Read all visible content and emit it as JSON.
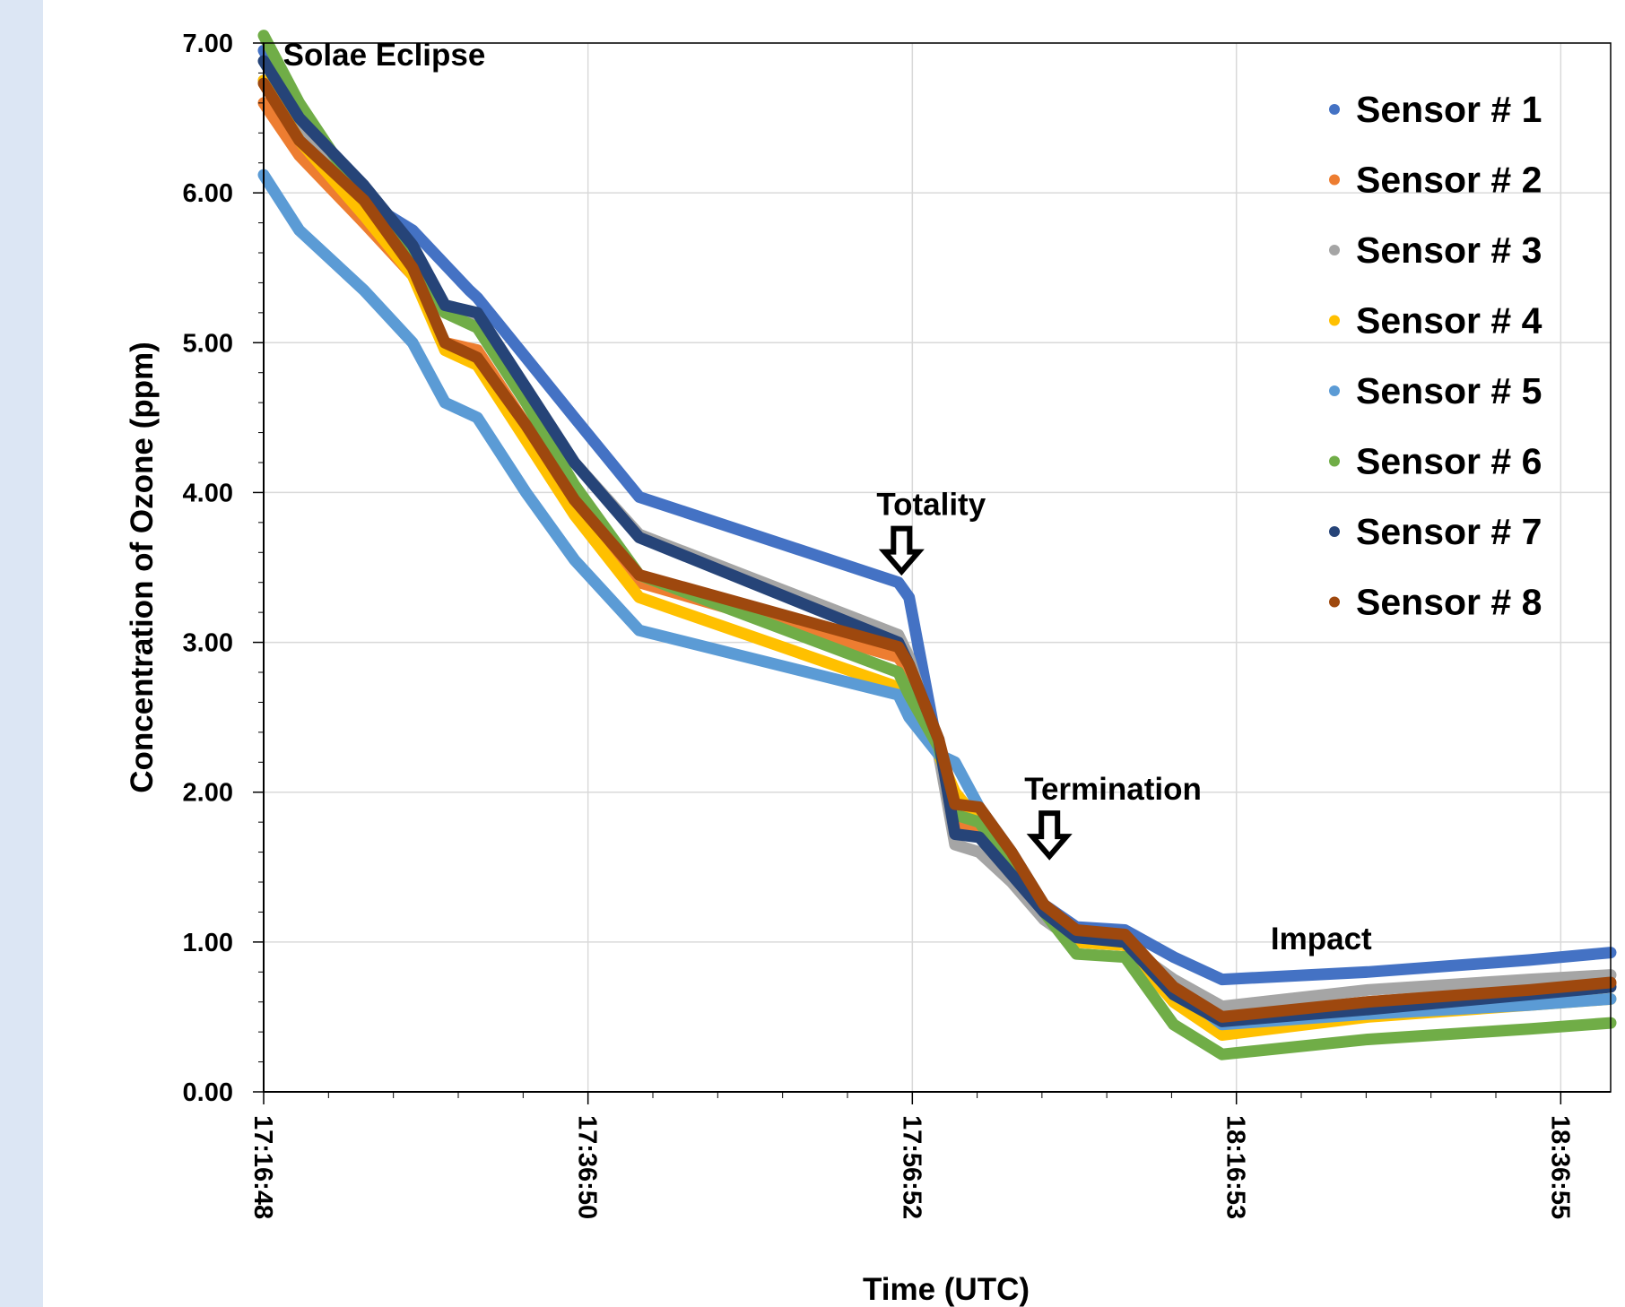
{
  "chart_data": {
    "type": "line",
    "title": "",
    "xlabel": "Time (UTC)",
    "ylabel": "Concentration of Ozone (ppm)",
    "ylim": [
      0,
      7
    ],
    "yticks": [
      "0.00",
      "1.00",
      "2.00",
      "3.00",
      "4.00",
      "5.00",
      "6.00",
      "7.00"
    ],
    "xlim": [
      "17:16:48",
      "18:40:00"
    ],
    "xticks": [
      "17:16:48",
      "17:36:50",
      "17:56:52",
      "18:16:53",
      "18:36:55"
    ],
    "grid": true,
    "legend_position": "top-right",
    "series": [
      {
        "name": "Sensor # 1",
        "color": "#4472c4",
        "x": [
          "17:16:48",
          "17:19:00",
          "17:23:00",
          "17:26:00",
          "17:29:30",
          "17:30:00",
          "17:33:00",
          "17:36:00",
          "17:40:00",
          "17:56:00",
          "17:56:40",
          "17:58:30",
          "17:59:30",
          "18:01:00",
          "18:03:00",
          "18:05:00",
          "18:07:00",
          "18:10:00",
          "18:13:00",
          "18:16:00",
          "18:25:00",
          "18:35:00",
          "18:40:00"
        ],
        "y": [
          6.95,
          6.55,
          5.95,
          5.75,
          5.35,
          5.3,
          4.9,
          4.5,
          3.97,
          3.4,
          3.3,
          2.25,
          1.75,
          1.7,
          1.5,
          1.25,
          1.1,
          1.08,
          0.9,
          0.75,
          0.8,
          0.88,
          0.93
        ]
      },
      {
        "name": "Sensor # 2",
        "color": "#ed7d31",
        "x": [
          "17:16:48",
          "17:19:00",
          "17:23:00",
          "17:26:00",
          "17:28:00",
          "17:30:00",
          "17:33:00",
          "17:36:00",
          "17:40:00",
          "17:56:00",
          "17:56:40",
          "17:58:30",
          "17:59:30",
          "18:01:00",
          "18:03:00",
          "18:05:00",
          "18:07:00",
          "18:10:00",
          "18:13:00",
          "18:16:00",
          "18:25:00",
          "18:35:00",
          "18:40:00"
        ],
        "y": [
          6.6,
          6.25,
          5.8,
          5.45,
          5.0,
          4.95,
          4.45,
          4.0,
          3.4,
          2.9,
          2.8,
          2.3,
          1.8,
          1.75,
          1.5,
          1.2,
          1.0,
          0.98,
          0.7,
          0.5,
          0.6,
          0.68,
          0.72
        ]
      },
      {
        "name": "Sensor # 3",
        "color": "#a5a5a5",
        "x": [
          "17:16:48",
          "17:19:00",
          "17:23:00",
          "17:26:00",
          "17:28:00",
          "17:30:00",
          "17:33:00",
          "17:36:00",
          "17:40:00",
          "17:56:00",
          "17:56:40",
          "17:58:30",
          "17:59:30",
          "18:01:00",
          "18:03:00",
          "18:05:00",
          "18:07:00",
          "18:10:00",
          "18:13:00",
          "18:16:00",
          "18:25:00",
          "18:35:00",
          "18:40:00"
        ],
        "y": [
          6.75,
          6.4,
          5.95,
          5.65,
          5.2,
          5.15,
          4.7,
          4.2,
          3.72,
          3.05,
          2.9,
          2.25,
          1.65,
          1.6,
          1.4,
          1.15,
          1.0,
          0.98,
          0.75,
          0.57,
          0.68,
          0.75,
          0.78
        ]
      },
      {
        "name": "Sensor # 4",
        "color": "#ffc000",
        "x": [
          "17:16:48",
          "17:19:00",
          "17:23:00",
          "17:26:00",
          "17:28:00",
          "17:30:00",
          "17:33:00",
          "17:36:00",
          "17:40:00",
          "17:56:00",
          "17:56:40",
          "17:58:30",
          "17:59:30",
          "18:01:00",
          "18:03:00",
          "18:05:00",
          "18:07:00",
          "18:10:00",
          "18:13:00",
          "18:16:00",
          "18:25:00",
          "18:35:00",
          "18:40:00"
        ],
        "y": [
          6.75,
          6.35,
          5.85,
          5.45,
          4.95,
          4.85,
          4.35,
          3.85,
          3.3,
          2.7,
          2.55,
          2.25,
          2.0,
          1.8,
          1.55,
          1.25,
          1.0,
          0.98,
          0.6,
          0.38,
          0.5,
          0.58,
          0.62
        ]
      },
      {
        "name": "Sensor # 5",
        "color": "#5b9bd5",
        "x": [
          "17:16:48",
          "17:19:00",
          "17:23:00",
          "17:26:00",
          "17:28:00",
          "17:30:00",
          "17:33:00",
          "17:36:00",
          "17:40:00",
          "17:56:00",
          "17:56:40",
          "17:58:30",
          "17:59:30",
          "18:01:00",
          "18:03:00",
          "18:05:00",
          "18:07:00",
          "18:10:00",
          "18:13:00",
          "18:16:00",
          "18:25:00",
          "18:35:00",
          "18:40:00"
        ],
        "y": [
          6.12,
          5.75,
          5.35,
          5.0,
          4.6,
          4.5,
          4.0,
          3.55,
          3.08,
          2.65,
          2.5,
          2.25,
          2.2,
          1.9,
          1.6,
          1.25,
          1.05,
          1.0,
          0.7,
          0.45,
          0.52,
          0.58,
          0.62
        ]
      },
      {
        "name": "Sensor # 6",
        "color": "#70ad47",
        "x": [
          "17:16:48",
          "17:19:00",
          "17:23:00",
          "17:26:00",
          "17:28:00",
          "17:30:00",
          "17:33:00",
          "17:36:00",
          "17:40:00",
          "17:56:00",
          "17:56:40",
          "17:58:30",
          "17:59:30",
          "18:01:00",
          "18:03:00",
          "18:05:00",
          "18:07:00",
          "18:10:00",
          "18:13:00",
          "18:16:00",
          "18:25:00",
          "18:35:00",
          "18:40:00"
        ],
        "y": [
          7.05,
          6.6,
          5.95,
          5.6,
          5.2,
          5.1,
          4.6,
          4.05,
          3.45,
          2.8,
          2.65,
          2.3,
          1.85,
          1.8,
          1.5,
          1.2,
          0.92,
          0.9,
          0.45,
          0.25,
          0.35,
          0.42,
          0.46
        ]
      },
      {
        "name": "Sensor # 7",
        "color": "#264478",
        "x": [
          "17:16:48",
          "17:19:00",
          "17:23:00",
          "17:26:00",
          "17:28:00",
          "17:30:00",
          "17:33:00",
          "17:36:00",
          "17:40:00",
          "17:56:00",
          "17:56:40",
          "17:58:30",
          "17:59:30",
          "18:01:00",
          "18:03:00",
          "18:05:00",
          "18:07:00",
          "18:10:00",
          "18:13:00",
          "18:16:00",
          "18:25:00",
          "18:35:00",
          "18:40:00"
        ],
        "y": [
          6.88,
          6.5,
          6.05,
          5.65,
          5.25,
          5.2,
          4.7,
          4.2,
          3.7,
          3.0,
          2.85,
          2.35,
          1.72,
          1.7,
          1.45,
          1.2,
          1.03,
          1.0,
          0.65,
          0.47,
          0.55,
          0.65,
          0.7
        ]
      },
      {
        "name": "Sensor # 8",
        "color": "#9e480e",
        "x": [
          "17:16:48",
          "17:19:00",
          "17:23:00",
          "17:26:00",
          "17:28:00",
          "17:30:00",
          "17:33:00",
          "17:36:00",
          "17:40:00",
          "17:56:00",
          "17:56:40",
          "17:58:30",
          "17:59:30",
          "18:01:00",
          "18:03:00",
          "18:05:00",
          "18:07:00",
          "18:10:00",
          "18:13:00",
          "18:16:00",
          "18:25:00",
          "18:35:00",
          "18:40:00"
        ],
        "y": [
          6.73,
          6.35,
          5.95,
          5.5,
          5.0,
          4.9,
          4.45,
          3.95,
          3.45,
          2.97,
          2.85,
          2.35,
          1.92,
          1.9,
          1.6,
          1.25,
          1.08,
          1.05,
          0.7,
          0.5,
          0.6,
          0.68,
          0.73
        ]
      }
    ],
    "annotations": [
      {
        "text": "Solae Eclipse",
        "x": "17:18:00",
        "y": 6.85,
        "arrow": false
      },
      {
        "text": "Totality",
        "x": "17:56:52",
        "y": 3.7,
        "arrow": true
      },
      {
        "text": "Termination",
        "x": "18:06:00",
        "y": 1.8,
        "arrow": true
      },
      {
        "text": "Impact",
        "x": "18:19:00",
        "y": 0.95,
        "arrow": false
      }
    ]
  }
}
